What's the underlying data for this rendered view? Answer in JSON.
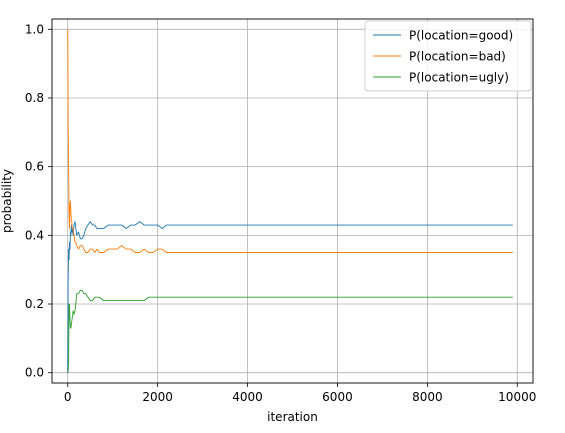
{
  "chart_data": {
    "type": "line",
    "title": "",
    "xlabel": "iteration",
    "ylabel": "probability",
    "xlim": [
      -350,
      10350
    ],
    "ylim": [
      -0.03,
      1.03
    ],
    "x_ticks": [
      0,
      2000,
      4000,
      6000,
      8000,
      10000
    ],
    "y_ticks": [
      0.0,
      0.2,
      0.4,
      0.6,
      0.8,
      1.0
    ],
    "x_tick_labels": [
      "0",
      "2000",
      "4000",
      "6000",
      "8000",
      "10000"
    ],
    "y_tick_labels": [
      "0.0",
      "0.2",
      "0.4",
      "0.6",
      "0.8",
      "1.0"
    ],
    "grid": true,
    "legend_position": "top-right",
    "x": [
      0,
      10,
      20,
      30,
      40,
      50,
      60,
      70,
      80,
      90,
      100,
      120,
      140,
      160,
      180,
      200,
      240,
      280,
      320,
      360,
      400,
      450,
      500,
      550,
      600,
      650,
      700,
      800,
      900,
      1000,
      1100,
      1200,
      1300,
      1400,
      1500,
      1600,
      1700,
      1800,
      1900,
      2000,
      2100,
      2200,
      2400,
      2600,
      2800,
      3000,
      3500,
      4000,
      4500,
      5000,
      5500,
      6000,
      6500,
      7000,
      7500,
      8000,
      8500,
      9000,
      9500,
      9900
    ],
    "series": [
      {
        "name": "P(location=good)",
        "color": "#1f77b4",
        "values": [
          0.0,
          0.28,
          0.36,
          0.33,
          0.38,
          0.36,
          0.41,
          0.4,
          0.43,
          0.41,
          0.42,
          0.4,
          0.43,
          0.44,
          0.42,
          0.4,
          0.41,
          0.39,
          0.39,
          0.4,
          0.42,
          0.43,
          0.44,
          0.43,
          0.43,
          0.42,
          0.42,
          0.42,
          0.43,
          0.43,
          0.43,
          0.43,
          0.42,
          0.43,
          0.43,
          0.44,
          0.43,
          0.43,
          0.43,
          0.43,
          0.42,
          0.43,
          0.43,
          0.43,
          0.43,
          0.43,
          0.43,
          0.43,
          0.43,
          0.43,
          0.43,
          0.43,
          0.43,
          0.43,
          0.43,
          0.43,
          0.43,
          0.43,
          0.43,
          0.43
        ]
      },
      {
        "name": "P(location=bad)",
        "color": "#ff7f0e",
        "values": [
          1.0,
          0.72,
          0.6,
          0.46,
          0.42,
          0.49,
          0.5,
          0.47,
          0.44,
          0.44,
          0.42,
          0.42,
          0.4,
          0.38,
          0.38,
          0.37,
          0.36,
          0.37,
          0.37,
          0.36,
          0.35,
          0.35,
          0.36,
          0.36,
          0.35,
          0.36,
          0.35,
          0.35,
          0.36,
          0.36,
          0.36,
          0.37,
          0.36,
          0.36,
          0.35,
          0.35,
          0.36,
          0.35,
          0.35,
          0.36,
          0.36,
          0.35,
          0.35,
          0.35,
          0.35,
          0.35,
          0.35,
          0.35,
          0.35,
          0.35,
          0.35,
          0.35,
          0.35,
          0.35,
          0.35,
          0.35,
          0.35,
          0.35,
          0.35,
          0.35
        ]
      },
      {
        "name": "P(location=ugly)",
        "color": "#2ca02c",
        "values": [
          0.0,
          0.0,
          0.04,
          0.2,
          0.2,
          0.15,
          0.13,
          0.13,
          0.14,
          0.15,
          0.16,
          0.18,
          0.17,
          0.18,
          0.2,
          0.23,
          0.23,
          0.24,
          0.24,
          0.23,
          0.23,
          0.22,
          0.21,
          0.21,
          0.22,
          0.22,
          0.22,
          0.21,
          0.21,
          0.21,
          0.21,
          0.21,
          0.21,
          0.21,
          0.21,
          0.21,
          0.21,
          0.22,
          0.22,
          0.22,
          0.22,
          0.22,
          0.22,
          0.22,
          0.22,
          0.22,
          0.22,
          0.22,
          0.22,
          0.22,
          0.22,
          0.22,
          0.22,
          0.22,
          0.22,
          0.22,
          0.22,
          0.22,
          0.22,
          0.22
        ]
      }
    ]
  }
}
